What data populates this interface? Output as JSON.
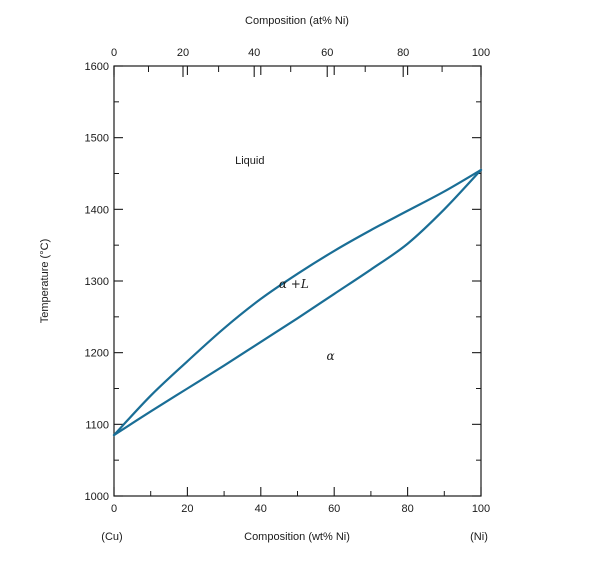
{
  "chart_data": {
    "type": "line",
    "title": "",
    "xlabel_top": "Composition (at% Ni)",
    "xlabel_bottom": "Composition (wt% Ni)",
    "ylabel": "Temperature (°C)",
    "x_end_labels": {
      "left": "(Cu)",
      "right": "(Ni)"
    },
    "xlim": [
      0,
      100
    ],
    "ylim": [
      1000,
      1600
    ],
    "x_ticks": [
      "0",
      "20",
      "40",
      "60",
      "80",
      "100"
    ],
    "y_ticks": [
      "1000",
      "1100",
      "1200",
      "1300",
      "1400",
      "1500",
      "1600"
    ],
    "top_ticks": [
      "0",
      "20",
      "40",
      "60",
      "80",
      "100"
    ],
    "top_tick_wt_positions": [
      0,
      18.8,
      38.2,
      58.1,
      78.8,
      100
    ],
    "series": [
      {
        "key": "liquidus",
        "name": "",
        "color": "#1a6e96",
        "x": [
          0,
          10,
          20,
          30,
          40,
          50,
          60,
          70,
          80,
          90,
          100
        ],
        "y": [
          1085,
          1140,
          1188,
          1234,
          1275,
          1310,
          1342,
          1371,
          1398,
          1425,
          1455
        ]
      },
      {
        "key": "solidus",
        "name": "",
        "color": "#1a6e96",
        "x": [
          0,
          10,
          20,
          30,
          40,
          50,
          60,
          70,
          80,
          90,
          100
        ],
        "y": [
          1085,
          1118,
          1150,
          1182,
          1215,
          1248,
          1282,
          1316,
          1352,
          1400,
          1455
        ]
      }
    ],
    "regions": [
      {
        "label": "Liquid",
        "x": 37,
        "y": 1463
      },
      {
        "label": "α +L",
        "x": 49,
        "y": 1290
      },
      {
        "label": "α",
        "x": 59,
        "y": 1190
      }
    ],
    "grid": false,
    "legend": "none"
  }
}
